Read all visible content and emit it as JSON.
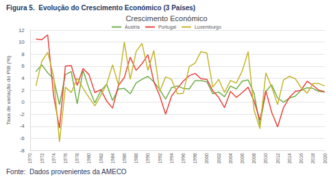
{
  "chart_data": {
    "type": "line",
    "title": "Crescimento Económico",
    "annotations": [
      "Figura 5.  Evolução do Crescimento Económico (3 Países)",
      "Fonte:  Dados provenientes da AMECO"
    ],
    "y_label": "Taxa de variação do PIB (%)",
    "categories": [
      "1970",
      null,
      "1972",
      null,
      "1974",
      null,
      "1976",
      null,
      "1978",
      null,
      "1980",
      null,
      "1982",
      null,
      "1984",
      null,
      "1986",
      null,
      "1988",
      null,
      "1990",
      null,
      "1992",
      null,
      "1994",
      null,
      "1996",
      null,
      "1998",
      null,
      "2000",
      null,
      "2002",
      null,
      "2004",
      null,
      "2006",
      null,
      "2008",
      null,
      "2010",
      null,
      "2012",
      null,
      "2014",
      null,
      "2016",
      null,
      "2018",
      null,
      "2020"
    ],
    "series": [
      {
        "name": "Áustria",
        "color": "#70ad47",
        "values": [
          null,
          5.1,
          6.2,
          4.9,
          3.9,
          -0.4,
          4.6,
          5.1,
          -0.3,
          5.3,
          2.3,
          -0.1,
          1.9,
          3.0,
          0.3,
          2.2,
          2.3,
          1.4,
          3.2,
          3.8,
          4.3,
          3.4,
          2.1,
          0.5,
          2.4,
          2.7,
          2.3,
          2.2,
          3.6,
          3.6,
          3.4,
          1.4,
          1.7,
          0.9,
          2.7,
          2.2,
          3.5,
          3.7,
          1.5,
          -3.8,
          1.8,
          2.9,
          0.7,
          0.0,
          0.7,
          1.0,
          2.0,
          2.4,
          2.3,
          1.8,
          1.7
        ]
      },
      {
        "name": "Portugal",
        "color": "#e8413c",
        "values": [
          null,
          10.5,
          10.4,
          11.2,
          1.1,
          -4.3,
          6.0,
          6.1,
          2.8,
          5.6,
          4.6,
          1.6,
          2.1,
          0.2,
          -1.0,
          2.8,
          4.1,
          7.5,
          5.3,
          6.4,
          7.9,
          3.4,
          1.1,
          -2.0,
          1.0,
          2.3,
          3.5,
          4.4,
          4.8,
          3.9,
          3.8,
          1.9,
          0.8,
          -0.9,
          1.8,
          0.8,
          1.6,
          2.5,
          0.2,
          -3.0,
          1.9,
          -1.7,
          -4.1,
          -0.9,
          0.8,
          1.8,
          2.0,
          3.5,
          2.8,
          2.0,
          1.7
        ]
      },
      {
        "name": "Luxemburgo",
        "color": "#c4b42c",
        "values": [
          null,
          2.7,
          6.8,
          8.3,
          4.3,
          -6.6,
          2.5,
          1.6,
          4.0,
          2.3,
          0.8,
          -0.6,
          1.1,
          3.0,
          6.2,
          2.9,
          10.0,
          3.8,
          8.4,
          9.8,
          5.3,
          8.6,
          1.8,
          4.2,
          3.8,
          1.4,
          1.5,
          5.9,
          6.5,
          8.4,
          8.2,
          2.5,
          3.8,
          1.6,
          3.6,
          3.2,
          5.2,
          8.4,
          -1.3,
          -4.4,
          4.9,
          2.5,
          -0.4,
          3.7,
          4.3,
          3.9,
          2.4,
          1.5,
          3.1,
          3.1,
          2.7
        ]
      }
    ],
    "ylim": [
      -8,
      12
    ],
    "yticks": [
      -8,
      -6,
      -4,
      -2,
      0,
      2,
      4,
      6,
      8,
      10,
      12
    ],
    "grid": true,
    "legend": "top"
  }
}
